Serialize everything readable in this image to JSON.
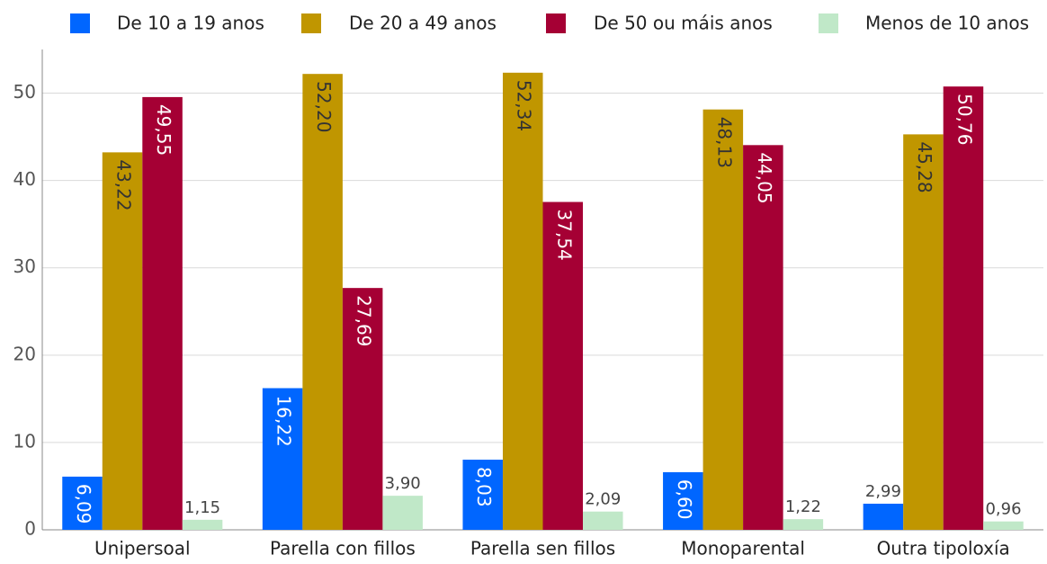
{
  "chart_data": {
    "type": "bar",
    "categories": [
      "Unipersoal",
      "Parella con fillos",
      "Parella sen fillos",
      "Monoparental",
      "Outra tipoloxía"
    ],
    "series": [
      {
        "name": "De 10 a 19 anos",
        "color": "#0066ff",
        "values": [
          6.09,
          16.22,
          8.03,
          6.6,
          2.99
        ],
        "value_labels": [
          "6,09",
          "16,22",
          "8,03",
          "6,60",
          "2,99"
        ]
      },
      {
        "name": "De 20 a 49 anos",
        "color": "#c09600",
        "values": [
          43.22,
          52.2,
          52.34,
          48.13,
          45.28
        ],
        "value_labels": [
          "43,22",
          "52,20",
          "52,34",
          "48,13",
          "45,28"
        ]
      },
      {
        "name": "De 50 ou máis anos",
        "color": "#a50034",
        "values": [
          49.55,
          27.69,
          37.54,
          44.05,
          50.76
        ],
        "value_labels": [
          "49,55",
          "27,69",
          "37,54",
          "44,05",
          "50,76"
        ]
      },
      {
        "name": "Menos de 10 anos",
        "color": "#c0e8c8",
        "values": [
          1.15,
          3.9,
          2.09,
          1.22,
          0.96
        ],
        "value_labels": [
          "1,15",
          "3,90",
          "2,09",
          "1,22",
          "0,96"
        ]
      }
    ],
    "ylim": [
      0,
      55
    ],
    "yticks": [
      0,
      10,
      20,
      30,
      40,
      50
    ],
    "grid": true,
    "legend": "top"
  }
}
